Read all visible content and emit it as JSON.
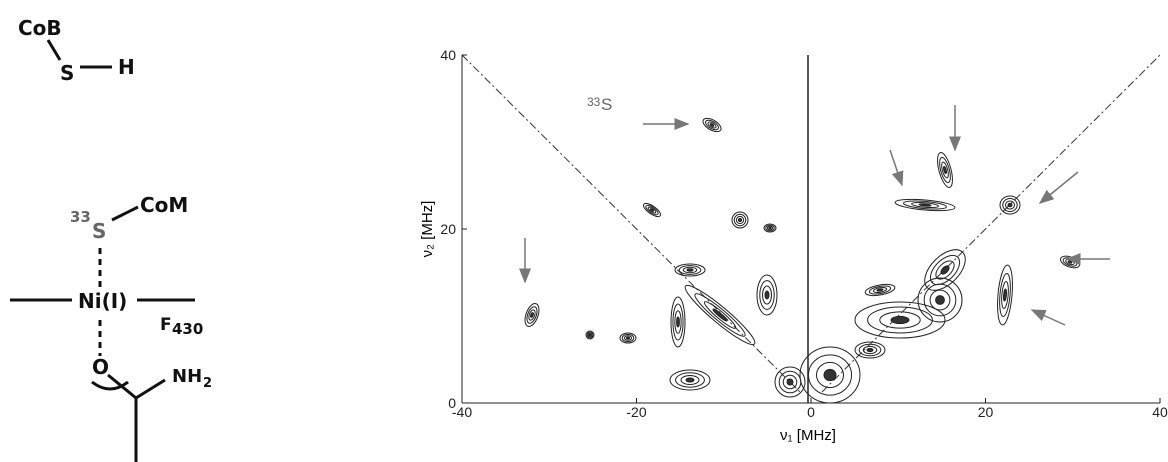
{
  "structure": {
    "top": {
      "cob": "CoB",
      "s": "S",
      "h": "H"
    },
    "bottom": {
      "isotope": "33",
      "s": "S",
      "com": "CoM",
      "ni": "Ni(I)",
      "f": "F",
      "f_sub": "430",
      "o": "O",
      "nh": "NH",
      "nh_sub": "2"
    }
  },
  "chart_data": {
    "type": "contour",
    "xlabel": "ν₁ [MHz]",
    "ylabel": "ν₂ [MHz]",
    "xlim": [
      -40,
      40
    ],
    "ylim": [
      0,
      40
    ],
    "xticks": [
      -40,
      -20,
      0,
      20,
      40
    ],
    "yticks": [
      0,
      20,
      40
    ],
    "annotation": {
      "isotope": "33",
      "atom": "S"
    }
  }
}
